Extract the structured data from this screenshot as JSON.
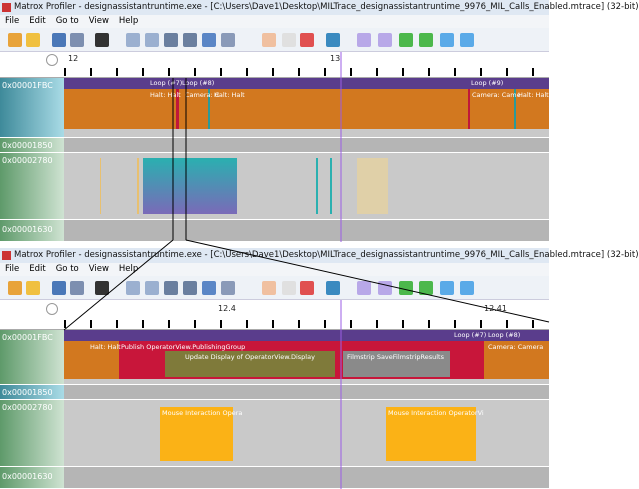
{
  "windows": [
    {
      "title": "Matrox Profiler - designassistantruntime.exe - [C:\\Users\\Dave1\\Desktop\\MILTrace_designassistantruntime_9976_MIL_Calls_Enabled.mtrace] (32-bit)",
      "menu": [
        "File",
        "Edit",
        "Go to",
        "View",
        "Help"
      ],
      "ruler": [
        "12",
        "13"
      ],
      "threads": [
        "0x00001FBC",
        "0x00001850",
        "0x00002780",
        "0x00001630"
      ],
      "loops": [
        "Loop (#7)",
        "Loop (#8)",
        "Loop (#9)"
      ],
      "segments": [
        "Halt: Halt",
        "Camera: C",
        "Halt: Halt",
        "Camera: Came",
        "Halt: Halt"
      ]
    },
    {
      "title": "Matrox Profiler - designassistantruntime.exe - [C:\\Users\\Dave1\\Desktop\\MILTrace_designassistantruntime_9976_MIL_Calls_Enabled.mtrace] (32-bit)",
      "menu": [
        "File",
        "Edit",
        "Go to",
        "View",
        "Help"
      ],
      "ruler": [
        "12.4",
        "12.41"
      ],
      "threads": [
        "0x00001FBC",
        "0x00001850",
        "0x00002780",
        "0x00001630"
      ],
      "loops": [
        "Loop (#7)",
        "Loop (#8)"
      ],
      "segments": [
        "Halt: Halt",
        "Publish OperatorView.PublishingGroup",
        "Update Display of OperatorView.Display",
        "Filmstrip SaveFilmstripResults",
        "Camera: Camera",
        "Mouse Interaction Opera",
        "Mouse Interaction OperatorVi"
      ]
    }
  ]
}
